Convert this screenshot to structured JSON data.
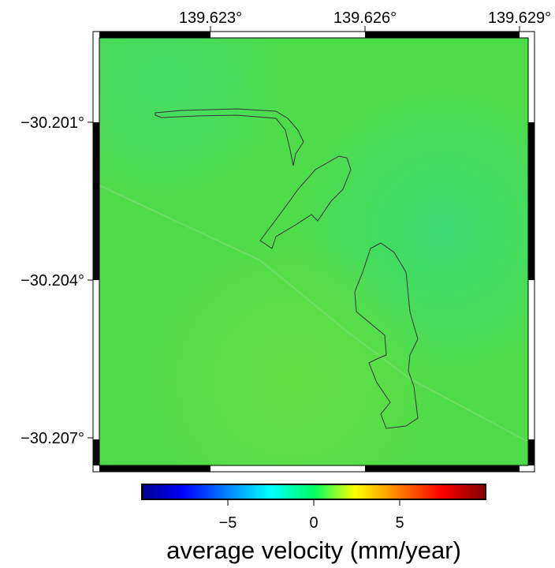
{
  "map": {
    "lon_ticks": [
      {
        "value": 139.623,
        "label": "139.623°"
      },
      {
        "value": 139.626,
        "label": "139.626°"
      },
      {
        "value": 139.629,
        "label": "139.629°"
      }
    ],
    "lat_ticks": [
      {
        "value": -30.201,
        "label": "−30.201°"
      },
      {
        "value": -30.204,
        "label": "−30.204°"
      },
      {
        "value": -30.207,
        "label": "−30.207°"
      }
    ]
  },
  "colorbar": {
    "label": "average velocity (mm/year)",
    "range": [
      -10,
      10
    ],
    "ticks": [
      {
        "value": -5,
        "label": "−5"
      },
      0,
      5
    ]
  }
}
